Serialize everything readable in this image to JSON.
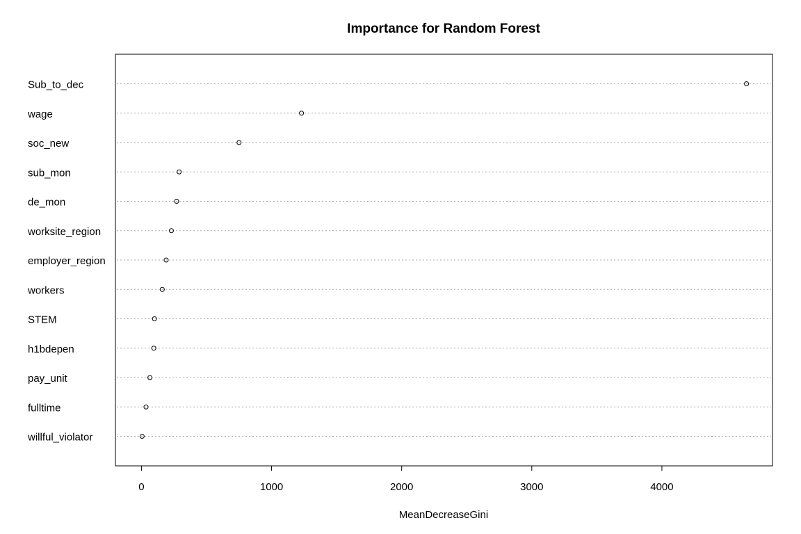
{
  "chart_data": {
    "type": "scatter",
    "title": "Importance for Random Forest",
    "xlabel": "MeanDecreaseGini",
    "ylabel": "",
    "xlim": [
      -200,
      4850
    ],
    "xticks": [
      0,
      1000,
      2000,
      3000,
      4000
    ],
    "grid": "dotted horizontal",
    "categories": [
      "Sub_to_dec",
      "wage",
      "soc_new",
      "sub_mon",
      "de_mon",
      "worksite_region",
      "employer_region",
      "workers",
      "STEM",
      "h1bdepen",
      "pay_unit",
      "fulltime",
      "willful_violator"
    ],
    "values": [
      4650,
      1230,
      750,
      290,
      270,
      230,
      190,
      160,
      100,
      95,
      65,
      35,
      5
    ]
  }
}
